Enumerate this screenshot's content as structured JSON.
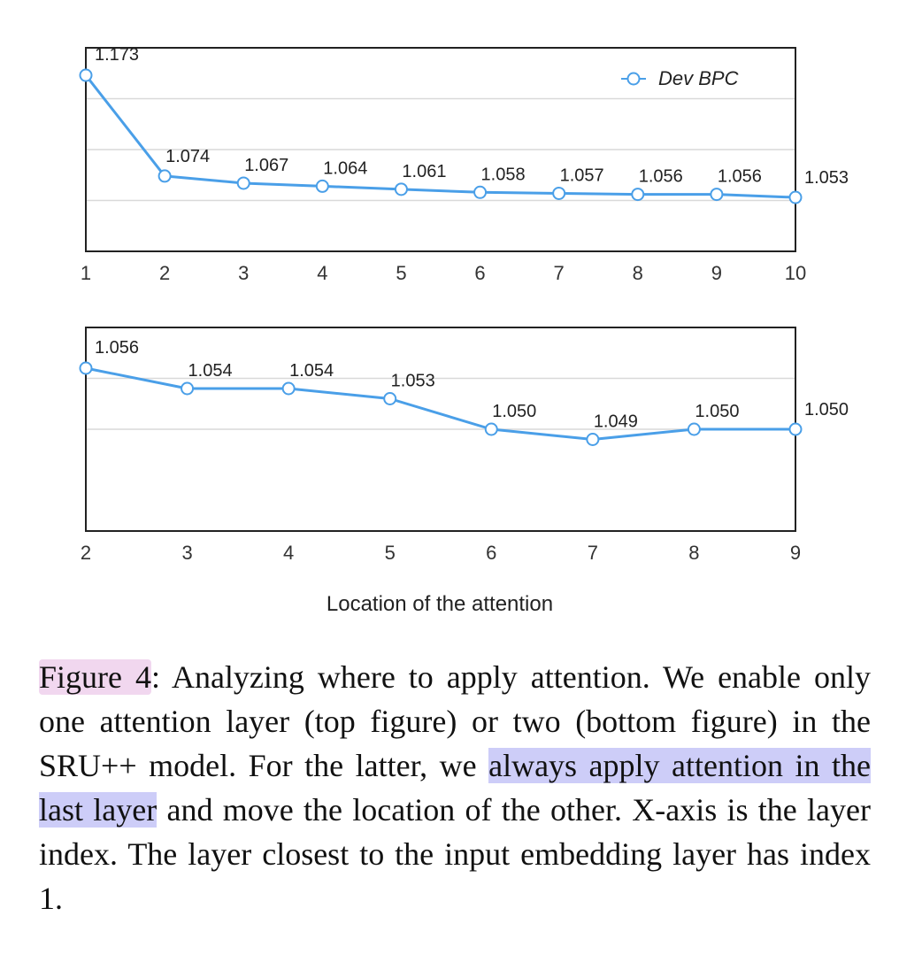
{
  "chart_data": [
    {
      "type": "line",
      "x": [
        1,
        2,
        3,
        4,
        5,
        6,
        7,
        8,
        9,
        10
      ],
      "series": [
        {
          "name": "Dev BPC",
          "values": [
            1.173,
            1.074,
            1.067,
            1.064,
            1.061,
            1.058,
            1.057,
            1.056,
            1.056,
            1.053
          ],
          "labels": [
            "1.173",
            "1.074",
            "1.067",
            "1.064",
            "1.061",
            "1.058",
            "1.057",
            "1.056",
            "1.056",
            "1.053"
          ]
        }
      ],
      "xticks": [
        "1",
        "2",
        "3",
        "4",
        "5",
        "6",
        "7",
        "8",
        "9",
        "10"
      ],
      "xlim": [
        1,
        10
      ],
      "ylim": [
        1.0,
        1.2
      ],
      "grid": true,
      "legend": "top-right",
      "color": "#4a9fe8"
    },
    {
      "type": "line",
      "x": [
        2,
        3,
        4,
        5,
        6,
        7,
        8,
        9
      ],
      "series": [
        {
          "values": [
            1.056,
            1.054,
            1.054,
            1.053,
            1.05,
            1.049,
            1.05,
            1.05
          ],
          "labels": [
            "1.056",
            "1.054",
            "1.054",
            "1.053",
            "1.050",
            "1.049",
            "1.050",
            "1.050"
          ]
        }
      ],
      "xticks": [
        "2",
        "3",
        "4",
        "5",
        "6",
        "7",
        "8",
        "9"
      ],
      "xlim": [
        2,
        9
      ],
      "ylim": [
        1.04,
        1.06
      ],
      "grid": true,
      "xlabel": "Location of the attention",
      "color": "#4a9fe8"
    }
  ],
  "caption": {
    "label": "Figure 4",
    "part1": ": Analyzing where to apply attention. We enable only one attention layer (top figure) or two (bottom figure) in the SRU++ model. For the latter, we ",
    "highlight": "always apply attention in the last layer",
    "part2": " and move the location of the other. X-axis is the layer index. The layer closest to the input embedding layer has index 1."
  }
}
